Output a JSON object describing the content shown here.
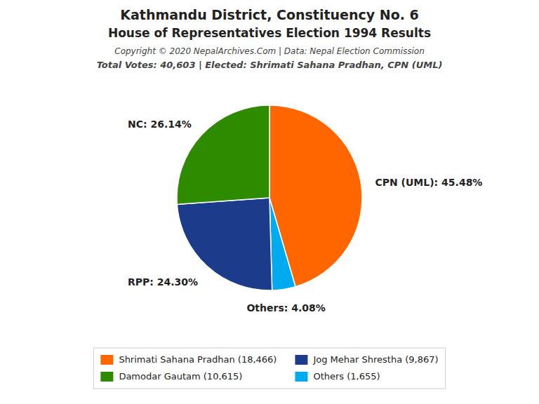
{
  "chart_data": {
    "type": "pie",
    "title": "Kathmandu District, Constituency No. 6",
    "subtitle": "House of Representatives Election 1994 Results",
    "annotations": [
      "Copyright © 2020 NepalArchives.Com | Data: Nepal Election Commission",
      "Total Votes: 40,603 | Elected: Shrimati Sahana Pradhan, CPN (UML)"
    ],
    "values": [
      45.48,
      4.08,
      24.3,
      26.14
    ],
    "value_labels": [
      "CPN (UML): 45.48%",
      "Others: 4.08%",
      "RPP: 24.30%",
      "NC: 26.14%"
    ],
    "colors": [
      "#FF6600",
      "#00AAEE",
      "#1C3B8A",
      "#2E8B00"
    ],
    "data_labels": true,
    "legend": "bottom",
    "legend_entries": [
      {
        "label": "Shrimati Sahana Pradhan (18,466)",
        "color": "#FF6600"
      },
      {
        "label": "Damodar Gautam (10,615)",
        "color": "#2E8B00"
      },
      {
        "label": "Jog Mehar Shrestha (9,867)",
        "color": "#1C3B8A"
      },
      {
        "label": "Others (1,655)",
        "color": "#00AAEE"
      }
    ]
  }
}
